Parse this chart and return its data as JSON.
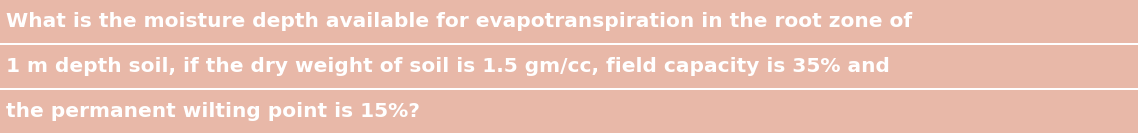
{
  "line1": "What is the moisture depth available for evapotranspiration in the root zone of",
  "line2": "1 m depth soil, if the dry weight of soil is 1.5 gm/cc, field capacity is 35% and",
  "line3": "the permanent wilting point is 15%?",
  "background_color": "#e8b8a8",
  "text_color": "#ffffff",
  "separator_color": "#ffffff",
  "font_size": 14.5,
  "fig_width": 11.38,
  "fig_height": 1.33,
  "dpi": 100
}
